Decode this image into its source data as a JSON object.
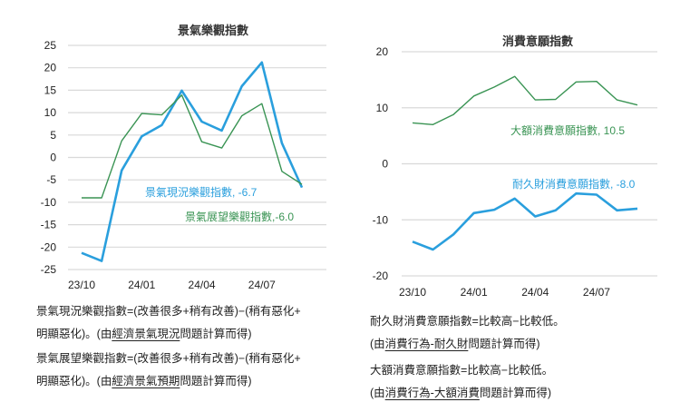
{
  "chart_data": [
    {
      "type": "line",
      "title": "景氣樂觀指數",
      "x": [
        "23/10",
        "23/11",
        "23/12",
        "24/01",
        "24/02",
        "24/03",
        "24/04",
        "24/05",
        "24/06",
        "24/07",
        "24/08",
        "24/09"
      ],
      "xticks": [
        "23/10",
        "24/01",
        "24/04",
        "24/07"
      ],
      "yticks": [
        25,
        20,
        15,
        10,
        5,
        0,
        -5,
        -10,
        -15,
        -20,
        -25
      ],
      "ylim": [
        -25,
        25
      ],
      "grid": true,
      "series": [
        {
          "name": "景氣現況樂觀指數",
          "label": "景氣現況樂觀指數, -6.7",
          "color": "#2a9fdd",
          "values": [
            -21.3,
            -23.1,
            -2.9,
            4.7,
            7.2,
            14.9,
            8.0,
            6.0,
            15.9,
            21.2,
            3.2,
            -6.7
          ]
        },
        {
          "name": "景氣展望樂觀指數",
          "label": "景氣展望樂觀指數,-6.0",
          "color": "#3a9454",
          "values": [
            -9.0,
            -9.0,
            3.7,
            9.8,
            9.5,
            13.9,
            3.5,
            2.1,
            9.3,
            12.0,
            -3.1,
            -6.0
          ]
        }
      ]
    },
    {
      "type": "line",
      "title": "消費意願指數",
      "x": [
        "23/10",
        "23/11",
        "23/12",
        "24/01",
        "24/02",
        "24/03",
        "24/04",
        "24/05",
        "24/06",
        "24/07",
        "24/08",
        "24/09"
      ],
      "xticks": [
        "23/10",
        "24/01",
        "24/04",
        "24/07"
      ],
      "yticks": [
        20,
        10,
        0,
        -10,
        -20
      ],
      "ylim": [
        -20,
        20
      ],
      "grid": true,
      "series": [
        {
          "name": "大額消費意願指數",
          "label": "大額消費意願指數, 10.5",
          "color": "#3a9454",
          "values": [
            7.3,
            7.0,
            8.8,
            12.1,
            13.7,
            15.6,
            11.4,
            11.5,
            14.6,
            14.7,
            11.4,
            10.5
          ]
        },
        {
          "name": "耐久財消費意願指數",
          "label": "耐久財消費意願指數, -8.0",
          "color": "#2a9fdd",
          "values": [
            -13.9,
            -15.3,
            -12.6,
            -8.8,
            -8.2,
            -6.2,
            -9.4,
            -8.3,
            -5.3,
            -5.5,
            -8.3,
            -8.0
          ]
        }
      ]
    }
  ],
  "notes": {
    "left1": {
      "a": "景氣現況樂觀指數=(改善很多+稍有改善)−(稍有惡化+",
      "b": "明顯惡化)。(由",
      "u": "經濟景氣現況",
      "c": "問題計算而得)"
    },
    "left2": {
      "a": "景氣展望樂觀指數=(改善很多+稍有改善)−(稍有惡化+",
      "b": "明顯惡化)。(由",
      "u": "經濟景氣預期",
      "c": "問題計算而得)"
    },
    "right1": {
      "a": "耐久財消費意願指數=比較高−比較低。",
      "b": "(由",
      "u": "消費行為-耐久財",
      "c": "問題計算而得)"
    },
    "right2": {
      "a": "大額消費意願指數=比較高−比較低。",
      "b": "(由",
      "u": "消費行為-大額消費",
      "c": "問題計算而得)"
    }
  }
}
